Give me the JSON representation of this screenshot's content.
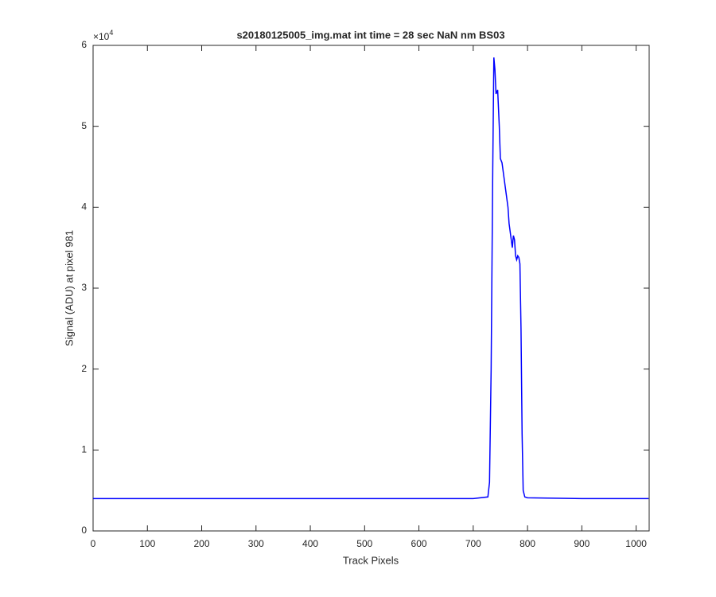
{
  "chart_data": {
    "type": "line",
    "title": "s20180125005_img.mat int time = 28 sec  NaN nm BS03",
    "x_label": "Track Pixels",
    "y_label": "Signal (ADU) at pixel 981",
    "y_multiplier": {
      "base": "×10",
      "exponent": "4"
    },
    "x": [
      0,
      100,
      200,
      300,
      400,
      500,
      600,
      700,
      727,
      730,
      733,
      736,
      738,
      740,
      742,
      745,
      748,
      750,
      753,
      756,
      760,
      764,
      766,
      770,
      772,
      774,
      776,
      778,
      780,
      782,
      784,
      786,
      788,
      790,
      792,
      795,
      800,
      900,
      1023
    ],
    "series": [
      {
        "name": "signal",
        "color": "#0000ff",
        "values": [
          4000,
          4000,
          4000,
          4000,
          4000,
          4000,
          4000,
          4000,
          4200,
          6000,
          20000,
          45000,
          58500,
          57000,
          54000,
          54500,
          50000,
          46000,
          45500,
          44000,
          42000,
          40000,
          38000,
          36000,
          35000,
          36500,
          36000,
          34000,
          33500,
          34000,
          33800,
          33000,
          25000,
          12000,
          5000,
          4200,
          4100,
          4000,
          4000
        ]
      }
    ],
    "xlim": [
      0,
      1024
    ],
    "ylim": [
      0,
      60000
    ],
    "xticks": [
      0,
      100,
      200,
      300,
      400,
      500,
      600,
      700,
      800,
      900,
      1000
    ],
    "yticks": [
      {
        "value": 0,
        "label": "0"
      },
      {
        "value": 10000,
        "label": "1"
      },
      {
        "value": 20000,
        "label": "2"
      },
      {
        "value": 30000,
        "label": "3"
      },
      {
        "value": 40000,
        "label": "4"
      },
      {
        "value": 50000,
        "label": "5"
      },
      {
        "value": 60000,
        "label": "6"
      }
    ],
    "grid": false
  }
}
